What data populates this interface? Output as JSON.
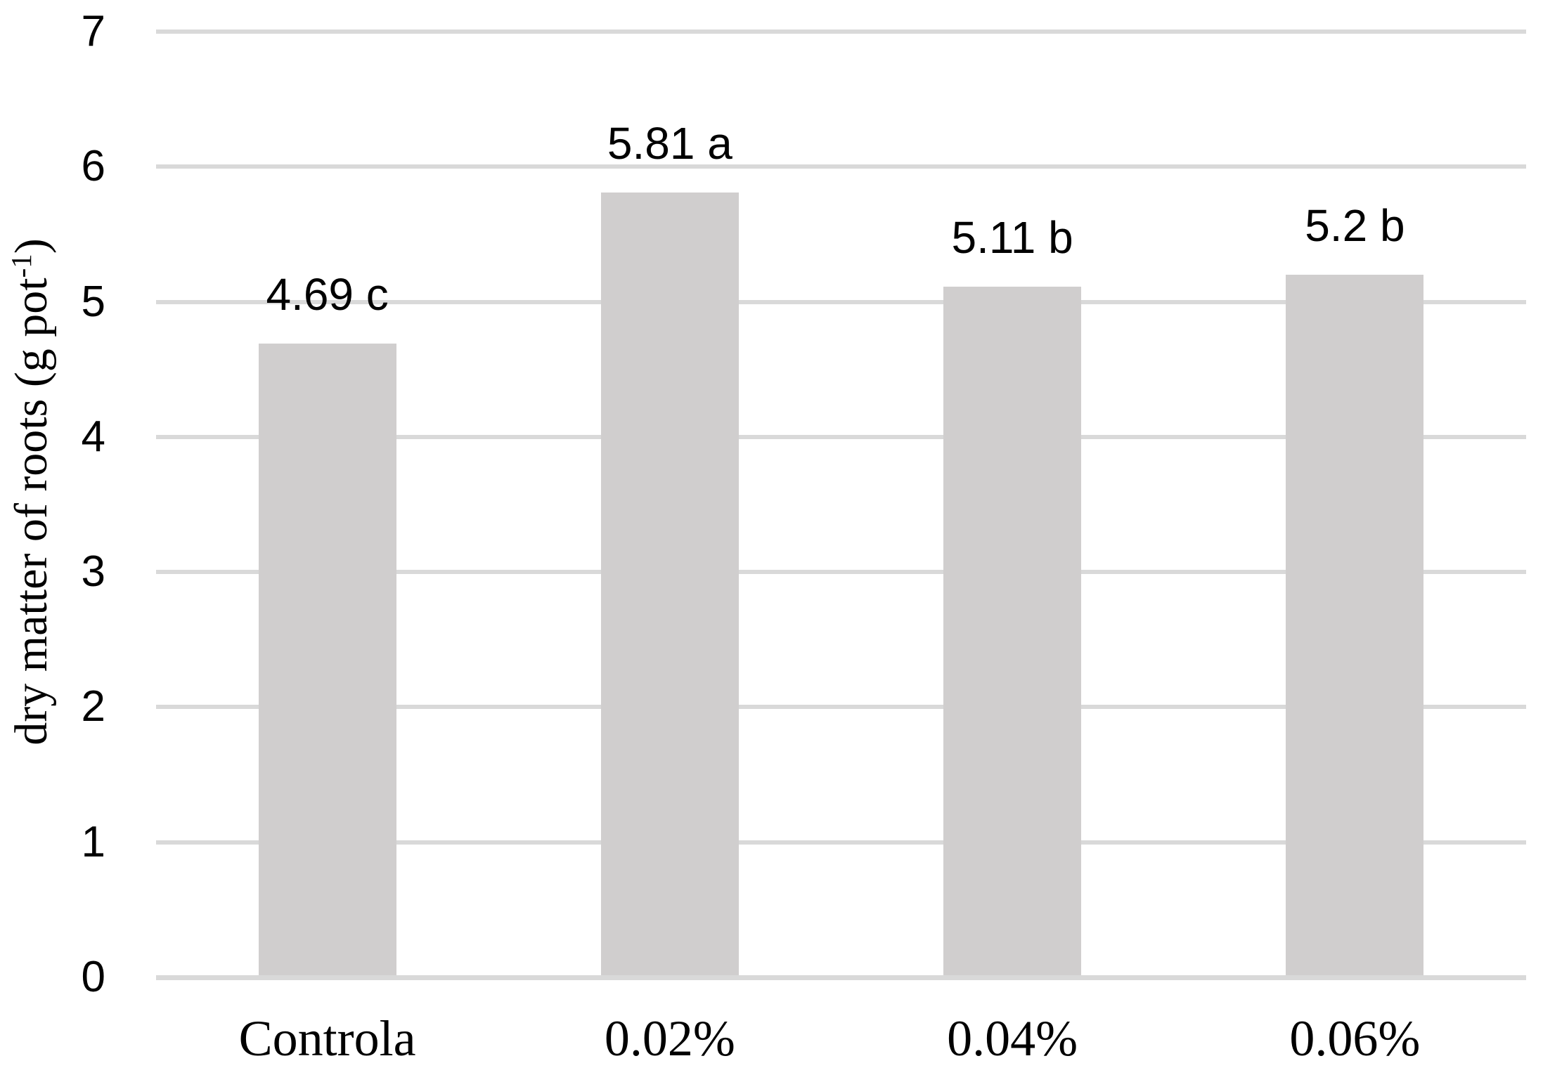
{
  "chart_data": {
    "type": "bar",
    "categories": [
      "Controla",
      "0.02%",
      "0.04%",
      "0.06%"
    ],
    "values": [
      4.69,
      5.81,
      5.11,
      5.2
    ],
    "value_labels": [
      "4.69 c",
      "5.81 a",
      "5.11 b",
      "5.2 b"
    ],
    "title": "",
    "xlabel": "",
    "ylabel": "dry matter of roots (g pot-1)",
    "ylabel_parts": {
      "main": "dry matter of roots (g pot",
      "sup": "-1",
      "close": ")"
    },
    "yticks": [
      0,
      1,
      2,
      3,
      4,
      5,
      6,
      7
    ],
    "ylim": [
      0,
      7
    ],
    "grid": "horizontal-only",
    "legend": "none",
    "bar_color": "#d0cece",
    "gridline_color": "#d9d9d9",
    "axis_line_color": "#d9d9d9",
    "text_color": "#000000",
    "background_color": "#ffffff"
  }
}
